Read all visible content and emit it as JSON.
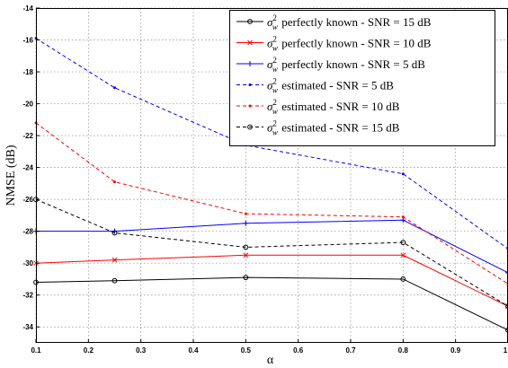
{
  "chart_data": {
    "type": "line",
    "xlabel": "α",
    "ylabel": "NMSE (dB)",
    "xlim": [
      0.1,
      1
    ],
    "ylim": [
      -35,
      -14
    ],
    "x_ticks": [
      0.1,
      0.2,
      0.3,
      0.4,
      0.5,
      0.6,
      0.7,
      0.8,
      0.9,
      1
    ],
    "y_ticks": [
      -34,
      -32,
      -30,
      -28,
      -26,
      -24,
      -22,
      -20,
      -18,
      -16,
      -14
    ],
    "grid": true,
    "legend_position": "top-right",
    "x": [
      0.1,
      0.25,
      0.5,
      0.8,
      1
    ],
    "series": [
      {
        "name_parts": [
          "σ",
          "w",
          "2",
          " perfectly known - SNR = 15 dB"
        ],
        "color": "#000000",
        "dash": "solid",
        "marker": "circle",
        "values": [
          -31.2,
          -31.1,
          -30.9,
          -31.0,
          -34.2
        ]
      },
      {
        "name_parts": [
          "σ",
          "w",
          "2",
          " perfectly known - SNR = 10 dB"
        ],
        "color": "#ff0000",
        "dash": "solid",
        "marker": "x",
        "values": [
          -30.0,
          -29.8,
          -29.5,
          -29.5,
          -32.7
        ]
      },
      {
        "name_parts": [
          "σ",
          "w",
          "2",
          " perfectly known - SNR = 5 dB"
        ],
        "color": "#0000ff",
        "dash": "solid",
        "marker": "plus",
        "values": [
          -28.0,
          -28.0,
          -27.5,
          -27.3,
          -30.6
        ]
      },
      {
        "name_parts": [
          "σ",
          "w",
          "2",
          " estimated - SNR = 5 dB"
        ],
        "color": "#0000ff",
        "dash": "dashed",
        "marker": "dot",
        "values": [
          -15.9,
          -19.0,
          -22.6,
          -24.4,
          -29.1
        ]
      },
      {
        "name_parts": [
          "σ",
          "w",
          "2",
          " estimated - SNR = 10 dB"
        ],
        "color": "#ff0000",
        "dash": "dashed",
        "marker": "dot",
        "values": [
          -21.2,
          -24.9,
          -26.9,
          -27.1,
          -31.3
        ]
      },
      {
        "name_parts": [
          "σ",
          "w",
          "2",
          " estimated - SNR = 15 dB"
        ],
        "color": "#000000",
        "dash": "dashed",
        "marker": "circle",
        "values": [
          -26.0,
          -28.1,
          -29.0,
          -28.7,
          -32.7
        ]
      }
    ]
  }
}
